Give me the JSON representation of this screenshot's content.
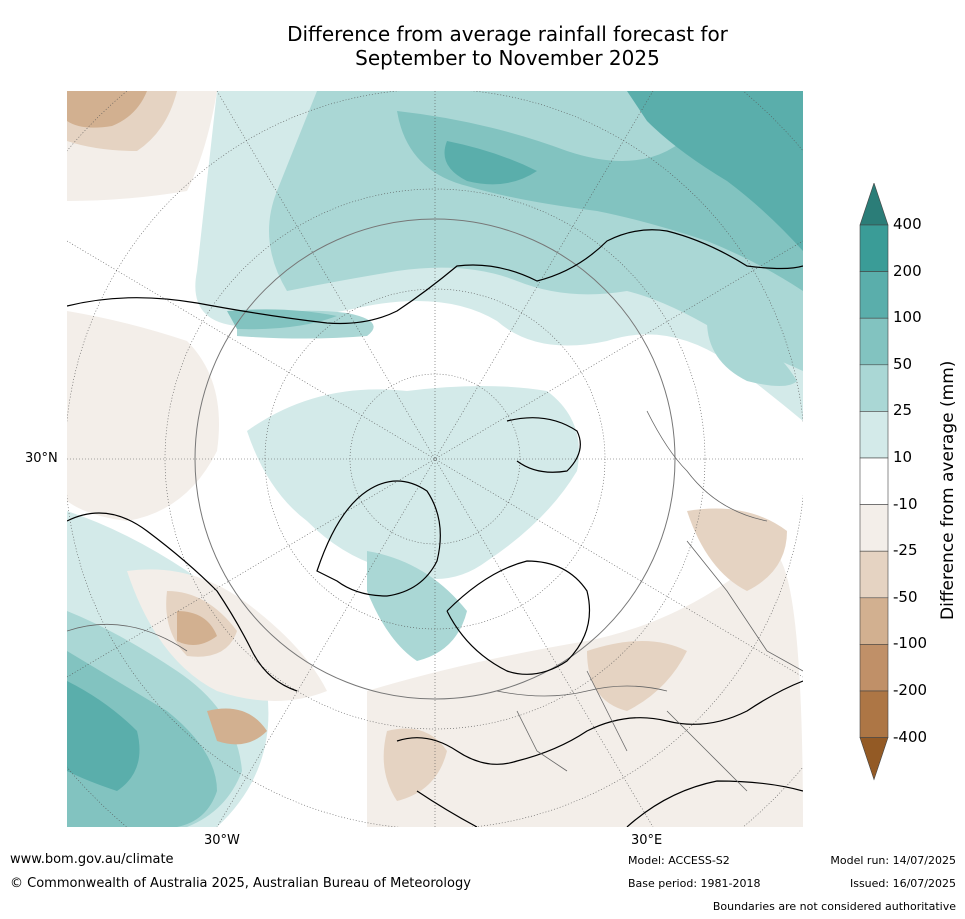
{
  "title_line1": "Difference from average rainfall forecast for",
  "title_line2": "September to November 2025",
  "map": {
    "lat_label": "30°N",
    "lon_labels": [
      "30°W",
      "30°E"
    ]
  },
  "colorbar": {
    "title": "Difference from average (mm)",
    "ticks": [
      "400",
      "200",
      "100",
      "50",
      "25",
      "10",
      "-10",
      "-25",
      "-50",
      "-100",
      "-200",
      "-400"
    ],
    "colors": [
      "#2b7d78",
      "#3a9c97",
      "#5aaeab",
      "#82c3c0",
      "#aad7d5",
      "#d3eae9",
      "#ffffff",
      "#f3eee9",
      "#e5d3c2",
      "#d2b090",
      "#c09068",
      "#ad7645",
      "#935a25"
    ]
  },
  "footer": {
    "website": "www.bom.gov.au/climate",
    "copyright": "© Commonwealth of Australia 2025, Australian Bureau of Meteorology",
    "model": "Model: ACCESS-S2",
    "base_period": "Base period: 1981-2018",
    "model_run": "Model run: 14/07/2025",
    "issued": "Issued: 16/07/2025",
    "disclaimer": "Boundaries are not considered authoritative"
  }
}
